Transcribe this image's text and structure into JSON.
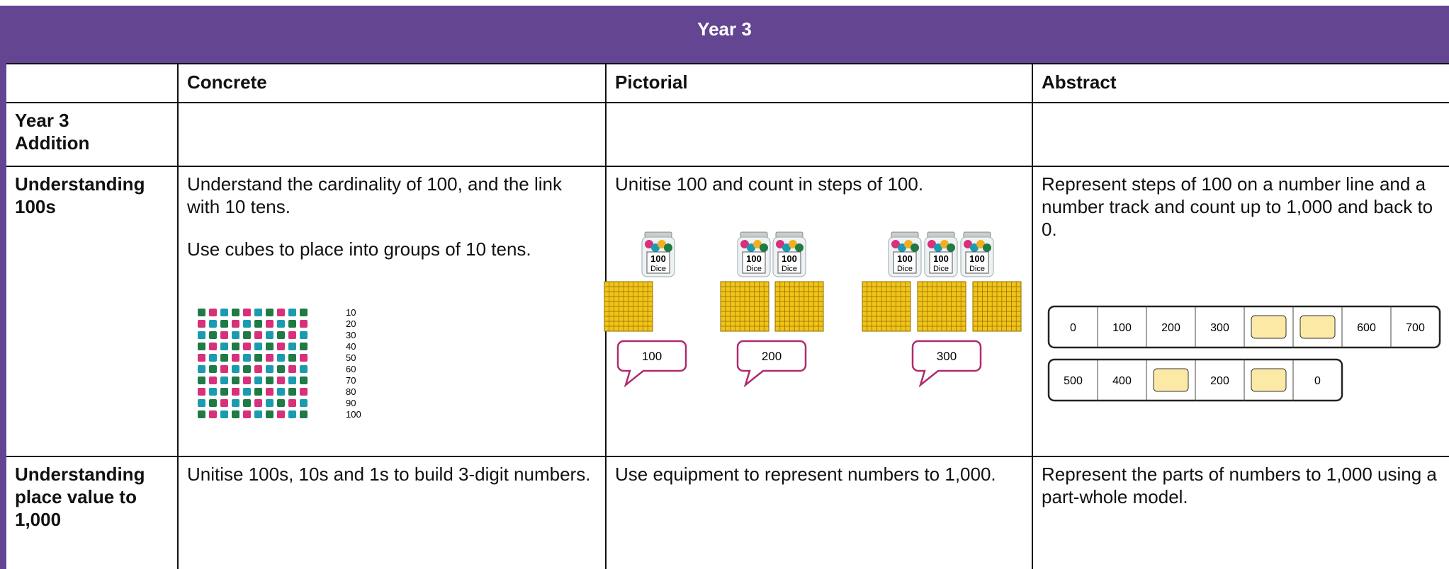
{
  "header": {
    "title": "Year 3"
  },
  "table": {
    "columns": [
      "Concrete",
      "Pictorial",
      "Abstract"
    ],
    "rows": [
      {
        "label": [
          "Year 3",
          "Addition"
        ]
      },
      {
        "label": "Understanding 100s",
        "concrete": {
          "text": [
            "Understand the cardinality of 100, and the link with 10 tens.",
            "Use cubes to place into groups of 10 tens."
          ],
          "cube_labels": [
            "10",
            "20",
            "30",
            "40",
            "50",
            "60",
            "70",
            "80",
            "90",
            "100"
          ]
        },
        "pictorial": {
          "text": "Unitise 100 and count in steps of 100.",
          "jar_label": [
            "100",
            "Dice"
          ],
          "bubbles": [
            "100",
            "200",
            "300"
          ]
        },
        "abstract": {
          "text": "Represent steps of 100 on a number line and a number track and count up to 1,000 and back to 0.",
          "track_1": [
            "0",
            "100",
            "200",
            "300",
            null,
            null,
            "600",
            "700"
          ],
          "track_2": [
            "500",
            "400",
            null,
            "200",
            null,
            "0"
          ]
        }
      },
      {
        "label": "Understanding place value to 1,000",
        "concrete": "Unitise 100s, 10s and 1s to build 3-digit numbers.",
        "pictorial": "Use equipment to represent numbers to 1,000.",
        "abstract": "Represent the parts of numbers to 1,000 using a part-whole model."
      }
    ]
  }
}
